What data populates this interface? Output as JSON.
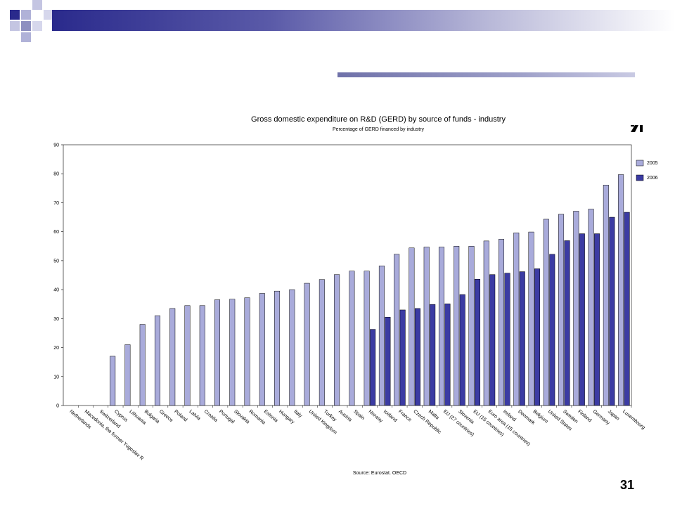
{
  "slide": {
    "page_number": "31",
    "colors": {
      "title_bar": "#2a2a8c",
      "accent": "#8d8fc0"
    }
  },
  "chart_data": {
    "type": "bar",
    "title": "Gross domestic expenditure on R&D (GERD) by source of funds - industry",
    "subtitle": "Percentage of GERD financed by industry",
    "source": "Source: Eurostat. OECD",
    "ylim": [
      0,
      90
    ],
    "yticks": [
      0,
      10,
      20,
      30,
      40,
      50,
      60,
      70,
      80,
      90
    ],
    "grid": false,
    "legend_position": "right",
    "categories": [
      "Netherlands",
      "Macedonia, the former Yugoslav R",
      "Switzerland",
      "Cyprus",
      "Lithuania",
      "Bulgaria",
      "Greece",
      "Poland",
      "Latvia",
      "Croatia",
      "Portugal",
      "Slovakia",
      "Romania",
      "Estonia",
      "Hungary",
      "Italy",
      "United Kingdom",
      "Turkey",
      "Austria",
      "Spain",
      "Norway",
      "Iceland",
      "France",
      "Czech Republic",
      "Malta",
      "EU (27 countries)",
      "Slovenia",
      "EU (15 countries)",
      "Euro area (15 countries)",
      "Ireland",
      "Denmark",
      "Belgium",
      "United States",
      "Sweden",
      "Finland",
      "Germany",
      "Japan",
      "Luxembourg"
    ],
    "series": [
      {
        "name": "2005",
        "color": "#a9abdb",
        "values": [
          null,
          null,
          null,
          17,
          21,
          28,
          31,
          33.5,
          34.5,
          34.5,
          36.5,
          36.7,
          37.2,
          38.7,
          39.5,
          40,
          42.2,
          43.5,
          45.2,
          46.4,
          46.4,
          48.2,
          52.2,
          54.4,
          54.7,
          54.7,
          55,
          55,
          56.8,
          57.4,
          59.6,
          59.9,
          64.3,
          66,
          67.1,
          67.8,
          76.1,
          79.7
        ]
      },
      {
        "name": "2006",
        "color": "#3b3ba3",
        "values": [
          null,
          null,
          null,
          null,
          null,
          null,
          null,
          null,
          null,
          null,
          null,
          null,
          null,
          null,
          null,
          null,
          null,
          null,
          null,
          null,
          26.3,
          30.5,
          33,
          33.5,
          34.9,
          35.1,
          38.3,
          43.6,
          45.2,
          45.7,
          46.2,
          47.2,
          52.2,
          56.9,
          59.3,
          59.3,
          65,
          66.7
        ]
      }
    ]
  }
}
